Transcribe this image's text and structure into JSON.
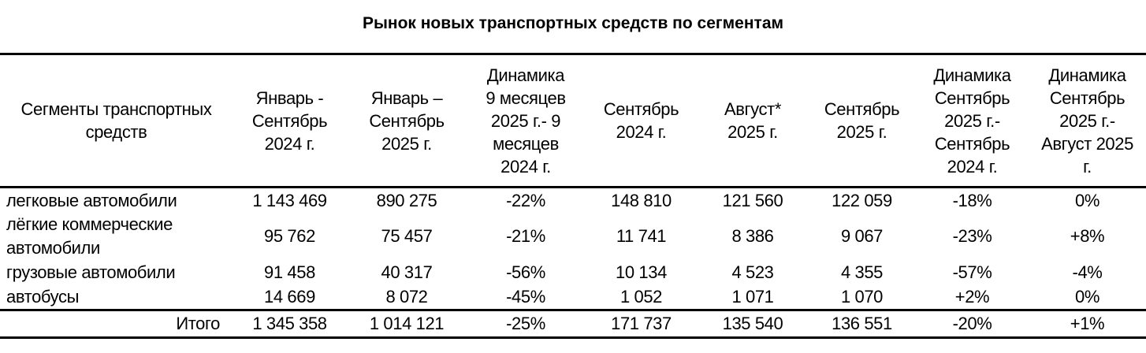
{
  "title": "Рынок новых транспортных средств по сегментам",
  "columns": [
    "Сегменты транспортных средств",
    "Январь - Сентябрь 2024 г.",
    "Январь – Сентябрь 2025 г.",
    "Динамика 9 месяцев 2025 г.- 9 месяцев 2024 г.",
    "Сентябрь 2024 г.",
    "Август* 2025 г.",
    "Сентябрь 2025 г.",
    "Динамика Сентябрь 2025 г.- Сентябрь 2024 г.",
    "Динамика Сентябрь 2025 г.- Август 2025 г."
  ],
  "rows": [
    [
      "легковые автомобили",
      "1 143 469",
      "890 275",
      "-22%",
      "148 810",
      "121 560",
      "122 059",
      "-18%",
      "0%"
    ],
    [
      "лёгкие коммерческие автомобили",
      "95 762",
      "75 457",
      "-21%",
      "11 741",
      "8 386",
      "9 067",
      "-23%",
      "+8%"
    ],
    [
      "грузовые автомобили",
      "91 458",
      "40 317",
      "-56%",
      "10 134",
      "4 523",
      "4 355",
      "-57%",
      "-4%"
    ],
    [
      "автобусы",
      "14 669",
      "8 072",
      "-45%",
      "1 052",
      "1 071",
      "1 070",
      "+2%",
      "0%"
    ]
  ],
  "total": [
    "Итого",
    "1 345 358",
    "1 014 121",
    "-25%",
    "171 737",
    "135 540",
    "136 551",
    "-20%",
    "+1%"
  ]
}
